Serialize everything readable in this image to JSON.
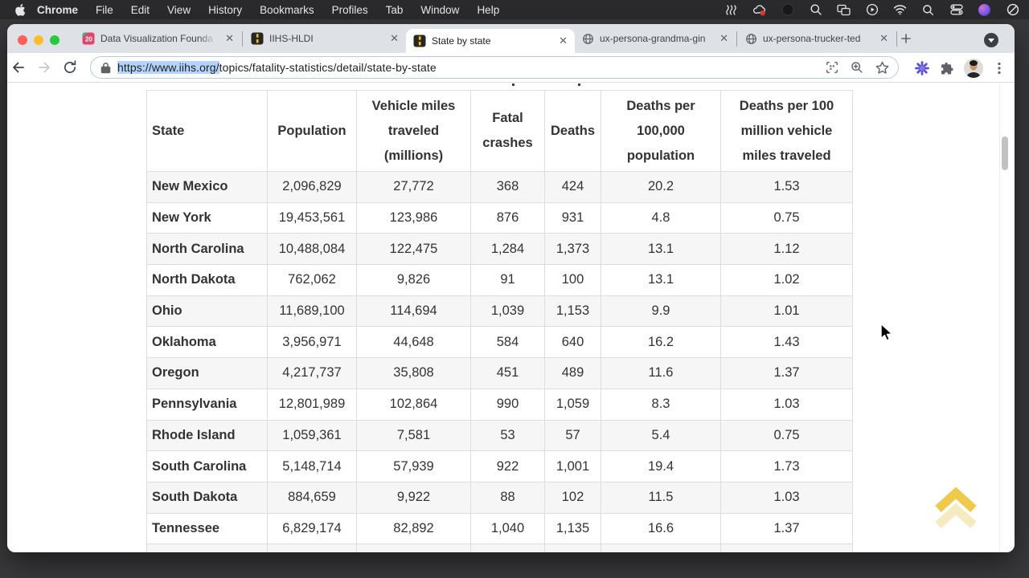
{
  "menu_bar": {
    "apple_logo": "apple-icon",
    "items": [
      "Chrome",
      "File",
      "Edit",
      "View",
      "History",
      "Bookmarks",
      "Profiles",
      "Tab",
      "Window",
      "Help"
    ],
    "status_icons": [
      "shortcuts-icon",
      "creative-cloud-icon",
      "app-circle-icon",
      "zoom-app-icon",
      "screen-mirroring-icon",
      "now-playing-icon",
      "wifi-icon",
      "spotlight-icon",
      "control-center-icon",
      "colorful-app-icon",
      "do-not-disturb-icon"
    ]
  },
  "window": {
    "tabs": [
      {
        "label": "Data Visualization Founda",
        "favicon": "calendar-20-icon",
        "badge": "20",
        "active": false
      },
      {
        "label": "IIHS-HLDI",
        "favicon": "road-icon",
        "active": false
      },
      {
        "label": "State by state",
        "favicon": "road-icon",
        "active": true
      },
      {
        "label": "ux-persona-grandma-gin",
        "favicon": "globe-icon",
        "active": false
      },
      {
        "label": "ux-persona-trucker-ted",
        "favicon": "globe-icon",
        "active": false
      }
    ],
    "close_glyph": "✕",
    "toolbar": {
      "url_selected": "https://www.iihs.org/",
      "url_rest": "topics/fatality-statistics/detail/state-by-state"
    }
  },
  "page": {
    "table": {
      "headers": [
        "State",
        "Population",
        "Vehicle miles traveled (millions)",
        "Fatal crashes",
        "Deaths",
        "Deaths per 100,000 population",
        "Deaths per 100 million vehicle miles traveled"
      ],
      "rows": [
        [
          "New Mexico",
          "2,096,829",
          "27,772",
          "368",
          "424",
          "20.2",
          "1.53"
        ],
        [
          "New York",
          "19,453,561",
          "123,986",
          "876",
          "931",
          "4.8",
          "0.75"
        ],
        [
          "North Carolina",
          "10,488,084",
          "122,475",
          "1,284",
          "1,373",
          "13.1",
          "1.12"
        ],
        [
          "North Dakota",
          "762,062",
          "9,826",
          "91",
          "100",
          "13.1",
          "1.02"
        ],
        [
          "Ohio",
          "11,689,100",
          "114,694",
          "1,039",
          "1,153",
          "9.9",
          "1.01"
        ],
        [
          "Oklahoma",
          "3,956,971",
          "44,648",
          "584",
          "640",
          "16.2",
          "1.43"
        ],
        [
          "Oregon",
          "4,217,737",
          "35,808",
          "451",
          "489",
          "11.6",
          "1.37"
        ],
        [
          "Pennsylvania",
          "12,801,989",
          "102,864",
          "990",
          "1,059",
          "8.3",
          "1.03"
        ],
        [
          "Rhode Island",
          "1,059,361",
          "7,581",
          "53",
          "57",
          "5.4",
          "0.75"
        ],
        [
          "South Carolina",
          "5,148,714",
          "57,939",
          "922",
          "1,001",
          "19.4",
          "1.73"
        ],
        [
          "South Dakota",
          "884,659",
          "9,922",
          "88",
          "102",
          "11.5",
          "1.03"
        ],
        [
          "Tennessee",
          "6,829,174",
          "82,892",
          "1,040",
          "1,135",
          "16.6",
          "1.37"
        ]
      ]
    },
    "colors": {
      "accent_gold": "#eec94b",
      "row_alt": "#f6f6f6",
      "selection": "#b5d4fc"
    }
  }
}
